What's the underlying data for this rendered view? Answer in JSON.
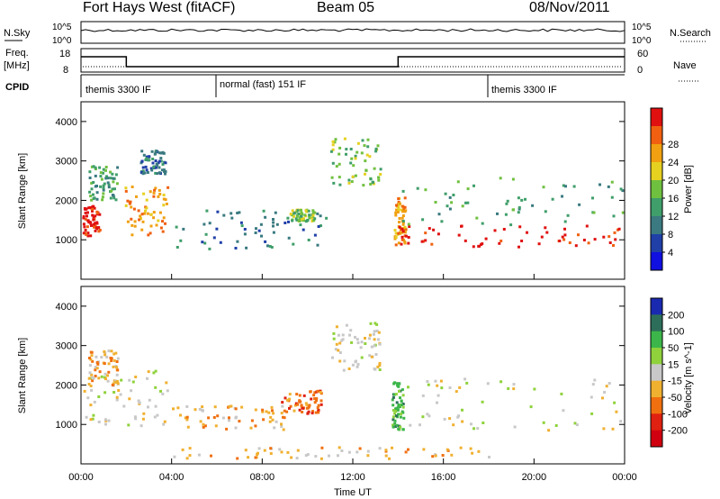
{
  "header": {
    "station": "Fort Hays West (fitACF)",
    "beam": "Beam 05",
    "date": "08/Nov/2011"
  },
  "top_panels": {
    "nsky_label": "N.Sky",
    "nsky_ticks": [
      "10^5",
      "10^0"
    ],
    "nsearch_label": "N.Search",
    "nsearch_ticks": [
      "10^5",
      "10^0"
    ],
    "freq_label": "Freq.",
    "freq_unit": "[MHz]",
    "freq_ticks": [
      "18",
      "8"
    ],
    "nave_label": "Nave",
    "nave_ticks": [
      "60",
      "0"
    ],
    "cpid_label": "CPID",
    "cpid_segments": [
      {
        "label": "themis 3300 IF",
        "start_hour": 0,
        "end_hour": 6
      },
      {
        "label": "normal (fast) 151 IF",
        "start_hour": 6,
        "end_hour": 18
      },
      {
        "label": "themis 3300 IF",
        "start_hour": 18,
        "end_hour": 24
      }
    ],
    "freq_steps": [
      {
        "start_hour": 0,
        "end_hour": 2,
        "level": "high"
      },
      {
        "start_hour": 2,
        "end_hour": 14,
        "level": "low"
      },
      {
        "start_hour": 14,
        "end_hour": 24,
        "level": "high"
      }
    ]
  },
  "chart_data": [
    {
      "type": "heatmap",
      "panel": "power",
      "ylabel": "Slant Range [km]",
      "yticks": [
        "1000",
        "2000",
        "3000",
        "4000"
      ],
      "ylim": [
        0,
        4500
      ],
      "xlim": [
        0,
        24
      ],
      "colorbar_label": "Power [dB]",
      "colorbar_ticks": [
        "4",
        "8",
        "12",
        "16",
        "20",
        "24",
        "28"
      ],
      "colorbar_colors": [
        "#1010e0",
        "#2040a8",
        "#3a7a80",
        "#3f9e6a",
        "#70c040",
        "#e6d020",
        "#f0a010",
        "#f06010",
        "#e01010"
      ],
      "regions": [
        {
          "t0": 0.05,
          "t1": 0.8,
          "r0": 1100,
          "r1": 1900,
          "level": 26
        },
        {
          "t0": 0.3,
          "t1": 1.6,
          "r0": 2000,
          "r1": 2900,
          "level": 12
        },
        {
          "t0": 1.9,
          "t1": 3.8,
          "r0": 1150,
          "r1": 2400,
          "level": 20
        },
        {
          "t0": 2.6,
          "t1": 3.8,
          "r0": 2700,
          "r1": 3300,
          "level": 8
        },
        {
          "t0": 4.1,
          "t1": 10.8,
          "r0": 800,
          "r1": 1800,
          "level": 8
        },
        {
          "t0": 9.2,
          "t1": 10.3,
          "r0": 1500,
          "r1": 1800,
          "level": 14
        },
        {
          "t0": 11.0,
          "t1": 13.2,
          "r0": 2400,
          "r1": 3600,
          "level": 14
        },
        {
          "t0": 13.8,
          "t1": 14.3,
          "r0": 900,
          "r1": 2100,
          "level": 22
        },
        {
          "t0": 14.0,
          "t1": 24.0,
          "r0": 850,
          "r1": 1400,
          "level": 26
        },
        {
          "t0": 14.0,
          "t1": 24.0,
          "r0": 1400,
          "r1": 2600,
          "level": 12
        }
      ]
    },
    {
      "type": "heatmap",
      "panel": "velocity",
      "ylabel": "Slant Range [km]",
      "yticks": [
        "1000",
        "2000",
        "3000",
        "4000"
      ],
      "ylim": [
        0,
        4500
      ],
      "xlim": [
        0,
        24
      ],
      "xlabel": "Time UT",
      "xticks": [
        "00:00",
        "04:00",
        "08:00",
        "12:00",
        "16:00",
        "20:00",
        "00:00"
      ],
      "colorbar_label": "Velocity [m s^-1]",
      "colorbar_ticks": [
        "200",
        "100",
        "50",
        "15",
        "-15",
        "-50",
        "-100",
        "-200"
      ],
      "colorbar_colors": [
        "#1a2ab0",
        "#2d6e5a",
        "#3cb64a",
        "#8fd23c",
        "#c8c8c8",
        "#f0b030",
        "#f07010",
        "#e02010",
        "#d00010"
      ],
      "regions": [
        {
          "t0": 0.05,
          "t1": 3.8,
          "r0": 1000,
          "r1": 2400,
          "velocity": 0
        },
        {
          "t0": 0.3,
          "t1": 1.6,
          "r0": 2000,
          "r1": 2900,
          "velocity": -30
        },
        {
          "t0": 4.0,
          "t1": 9.0,
          "r0": 900,
          "r1": 1500,
          "velocity": -40
        },
        {
          "t0": 8.8,
          "t1": 10.6,
          "r0": 1300,
          "r1": 1900,
          "velocity": -60
        },
        {
          "t0": 11.0,
          "t1": 13.2,
          "r0": 2400,
          "r1": 3600,
          "velocity": 0
        },
        {
          "t0": 13.7,
          "t1": 14.2,
          "r0": 900,
          "r1": 2100,
          "velocity": 40
        },
        {
          "t0": 14.0,
          "t1": 24.0,
          "r0": 850,
          "r1": 2200,
          "velocity": 0
        },
        {
          "t0": 4.0,
          "t1": 18.0,
          "r0": 150,
          "r1": 450,
          "velocity": -30
        }
      ]
    }
  ]
}
